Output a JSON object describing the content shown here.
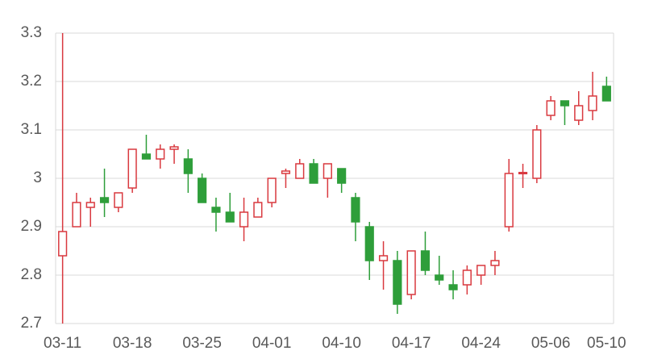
{
  "chart_data": {
    "type": "candlestick",
    "categories": [
      "03-11",
      null,
      null,
      null,
      null,
      "03-18",
      null,
      null,
      null,
      null,
      "03-25",
      null,
      null,
      null,
      null,
      "04-01",
      null,
      null,
      null,
      null,
      "04-10",
      null,
      null,
      null,
      null,
      "04-17",
      null,
      null,
      null,
      null,
      "04-24",
      null,
      null,
      null,
      null,
      "05-06",
      null,
      null,
      null,
      "05-10"
    ],
    "open": [
      2.84,
      2.9,
      2.94,
      2.96,
      2.94,
      2.98,
      3.05,
      3.04,
      3.06,
      3.04,
      3.0,
      2.94,
      2.93,
      2.9,
      2.92,
      2.95,
      3.01,
      3.0,
      3.03,
      3.0,
      3.02,
      2.96,
      2.9,
      2.83,
      2.83,
      2.76,
      2.85,
      2.8,
      2.78,
      2.78,
      2.8,
      2.82,
      2.9,
      3.01,
      3.0,
      3.13,
      3.16,
      3.12,
      3.14,
      3.19
    ],
    "high": [
      3.3,
      2.97,
      2.96,
      3.02,
      2.97,
      3.06,
      3.09,
      3.07,
      3.07,
      3.06,
      3.01,
      2.96,
      2.97,
      2.96,
      2.96,
      3.0,
      3.02,
      3.04,
      3.04,
      3.03,
      3.02,
      2.97,
      2.91,
      2.87,
      2.85,
      2.85,
      2.89,
      2.84,
      2.81,
      2.82,
      2.82,
      2.85,
      3.04,
      3.03,
      3.11,
      3.17,
      3.16,
      3.18,
      3.22,
      3.21
    ],
    "low": [
      2.7,
      2.9,
      2.9,
      2.92,
      2.93,
      2.97,
      3.04,
      3.02,
      3.03,
      2.97,
      2.95,
      2.89,
      2.91,
      2.87,
      2.92,
      2.94,
      2.98,
      3.0,
      2.99,
      2.96,
      2.97,
      2.87,
      2.79,
      2.77,
      2.72,
      2.75,
      2.8,
      2.78,
      2.75,
      2.76,
      2.78,
      2.8,
      2.89,
      2.98,
      2.99,
      3.12,
      3.11,
      3.11,
      3.12,
      3.16
    ],
    "close": [
      2.89,
      2.95,
      2.95,
      2.95,
      2.97,
      3.06,
      3.04,
      3.06,
      3.065,
      3.01,
      2.95,
      2.93,
      2.91,
      2.93,
      2.95,
      3.0,
      3.015,
      3.03,
      2.99,
      3.03,
      2.99,
      2.91,
      2.83,
      2.84,
      2.74,
      2.85,
      2.81,
      2.79,
      2.77,
      2.81,
      2.82,
      2.83,
      3.01,
      3.012,
      3.1,
      3.16,
      3.15,
      3.15,
      3.17,
      3.16
    ],
    "up_color": "#d9393f",
    "down_color": "#2e9e3a",
    "ylim": [
      2.7,
      3.3
    ],
    "yticks": [
      2.7,
      2.8,
      2.9,
      3,
      3.1,
      3.2,
      3.3
    ],
    "grid": true
  }
}
